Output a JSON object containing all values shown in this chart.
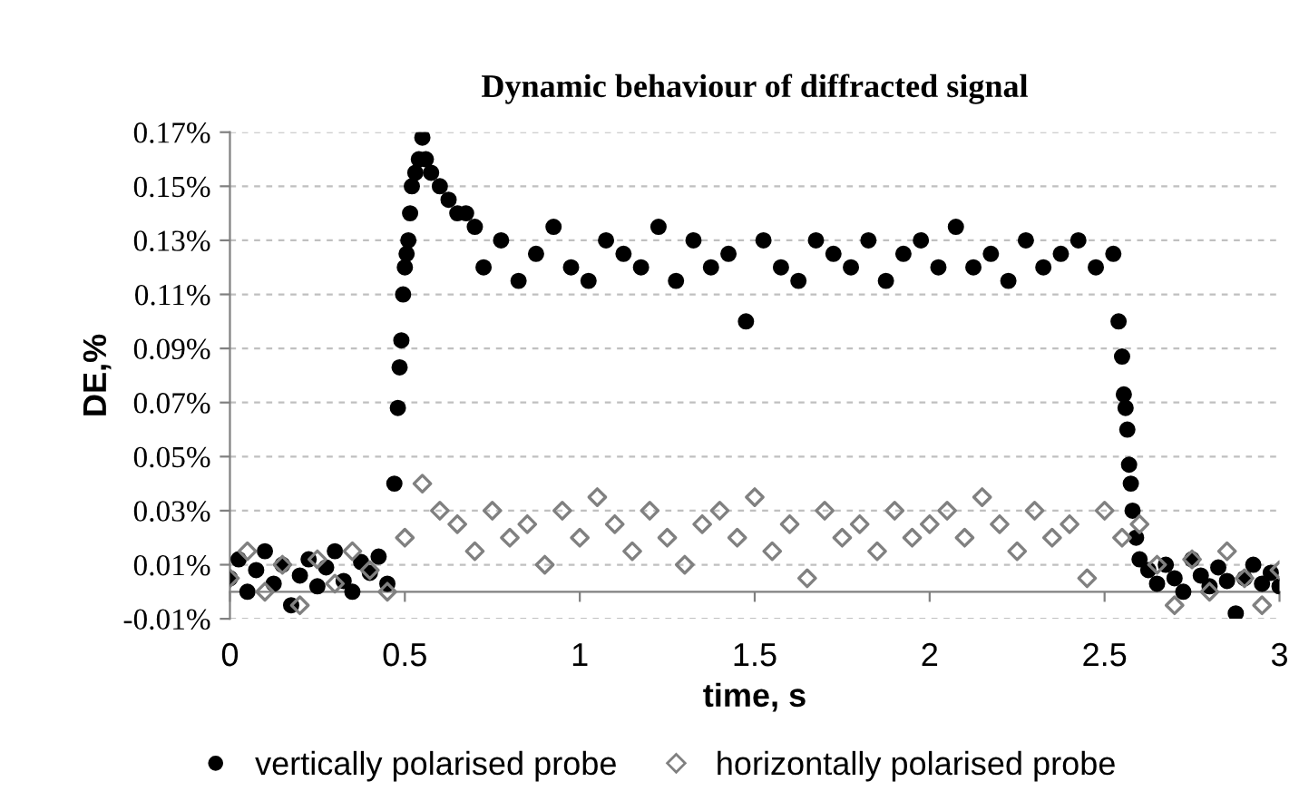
{
  "chart_data": {
    "type": "scatter",
    "title": "Dynamic behaviour of diffracted signal",
    "xlabel": "time, s",
    "ylabel": "DE,%",
    "xlim": [
      0,
      3
    ],
    "xticks": [
      0,
      0.5,
      1,
      1.5,
      2,
      2.5,
      3
    ],
    "ylim": [
      -0.01,
      0.17
    ],
    "yticks": [
      {
        "value": -0.01,
        "label": "-0.01%"
      },
      {
        "value": 0.01,
        "label": "0.01%"
      },
      {
        "value": 0.03,
        "label": "0.03%"
      },
      {
        "value": 0.05,
        "label": "0.05%"
      },
      {
        "value": 0.07,
        "label": "0.07%"
      },
      {
        "value": 0.09,
        "label": "0.09%"
      },
      {
        "value": 0.11,
        "label": "0.11%"
      },
      {
        "value": 0.13,
        "label": "0.13%"
      },
      {
        "value": 0.15,
        "label": "0.15%"
      },
      {
        "value": 0.17,
        "label": "0.17%"
      }
    ],
    "grid": "y",
    "legend": "bottom",
    "series": [
      {
        "name": "vertically polarised probe",
        "color": "#000000",
        "marker": "circle",
        "x": [
          0,
          0.025,
          0.05,
          0.075,
          0.1,
          0.125,
          0.15,
          0.175,
          0.2,
          0.225,
          0.25,
          0.275,
          0.3,
          0.325,
          0.35,
          0.375,
          0.4,
          0.425,
          0.45,
          0.47,
          0.48,
          0.485,
          0.49,
          0.495,
          0.5,
          0.505,
          0.51,
          0.515,
          0.52,
          0.53,
          0.54,
          0.55,
          0.56,
          0.575,
          0.6,
          0.625,
          0.65,
          0.675,
          0.7,
          0.725,
          0.775,
          0.825,
          0.875,
          0.925,
          0.975,
          1.025,
          1.075,
          1.125,
          1.175,
          1.225,
          1.275,
          1.325,
          1.375,
          1.425,
          1.475,
          1.525,
          1.575,
          1.625,
          1.675,
          1.725,
          1.775,
          1.825,
          1.875,
          1.925,
          1.975,
          2.025,
          2.075,
          2.125,
          2.175,
          2.225,
          2.275,
          2.325,
          2.375,
          2.425,
          2.475,
          2.525,
          2.54,
          2.55,
          2.555,
          2.56,
          2.565,
          2.57,
          2.575,
          2.58,
          2.59,
          2.6,
          2.625,
          2.65,
          2.675,
          2.7,
          2.725,
          2.75,
          2.775,
          2.8,
          2.825,
          2.85,
          2.875,
          2.9,
          2.925,
          2.95,
          2.975,
          3
        ],
        "values": [
          0.005,
          0.012,
          0.0,
          0.008,
          0.015,
          0.003,
          0.01,
          -0.005,
          0.006,
          0.012,
          0.002,
          0.009,
          0.015,
          0.004,
          0.0,
          0.011,
          0.007,
          0.013,
          0.003,
          0.04,
          0.068,
          0.083,
          0.093,
          0.11,
          0.12,
          0.125,
          0.13,
          0.14,
          0.15,
          0.155,
          0.16,
          0.168,
          0.16,
          0.155,
          0.15,
          0.145,
          0.14,
          0.14,
          0.135,
          0.12,
          0.13,
          0.115,
          0.125,
          0.135,
          0.12,
          0.115,
          0.13,
          0.125,
          0.12,
          0.135,
          0.115,
          0.13,
          0.12,
          0.125,
          0.1,
          0.13,
          0.12,
          0.115,
          0.13,
          0.125,
          0.12,
          0.13,
          0.115,
          0.125,
          0.13,
          0.12,
          0.135,
          0.12,
          0.125,
          0.115,
          0.13,
          0.12,
          0.125,
          0.13,
          0.12,
          0.125,
          0.1,
          0.087,
          0.073,
          0.068,
          0.06,
          0.047,
          0.04,
          0.03,
          0.02,
          0.012,
          0.008,
          0.003,
          0.01,
          0.005,
          0.0,
          0.012,
          0.006,
          0.002,
          0.009,
          0.004,
          -0.008,
          0.005,
          0.01,
          0.003,
          0.007,
          0.002
        ]
      },
      {
        "name": "horizontally polarised probe",
        "color": "#808080",
        "marker": "diamond",
        "x": [
          0,
          0.05,
          0.1,
          0.15,
          0.2,
          0.25,
          0.3,
          0.35,
          0.4,
          0.45,
          0.5,
          0.55,
          0.6,
          0.65,
          0.7,
          0.75,
          0.8,
          0.85,
          0.9,
          0.95,
          1,
          1.05,
          1.1,
          1.15,
          1.2,
          1.25,
          1.3,
          1.35,
          1.4,
          1.45,
          1.5,
          1.55,
          1.6,
          1.65,
          1.7,
          1.75,
          1.8,
          1.85,
          1.9,
          1.95,
          2,
          2.05,
          2.1,
          2.15,
          2.2,
          2.25,
          2.3,
          2.35,
          2.4,
          2.45,
          2.5,
          2.55,
          2.6,
          2.65,
          2.7,
          2.75,
          2.8,
          2.85,
          2.9,
          2.95,
          3
        ],
        "values": [
          0.005,
          0.015,
          0.0,
          0.01,
          -0.005,
          0.012,
          0.003,
          0.015,
          0.008,
          0.0,
          0.02,
          0.04,
          0.03,
          0.025,
          0.015,
          0.03,
          0.02,
          0.025,
          0.01,
          0.03,
          0.02,
          0.035,
          0.025,
          0.015,
          0.03,
          0.02,
          0.01,
          0.025,
          0.03,
          0.02,
          0.035,
          0.015,
          0.025,
          0.005,
          0.03,
          0.02,
          0.025,
          0.015,
          0.03,
          0.02,
          0.025,
          0.03,
          0.02,
          0.035,
          0.025,
          0.015,
          0.03,
          0.02,
          0.025,
          0.005,
          0.03,
          0.02,
          0.025,
          0.01,
          -0.005,
          0.012,
          0.0,
          0.015,
          0.005,
          -0.005,
          0.008
        ]
      }
    ]
  }
}
